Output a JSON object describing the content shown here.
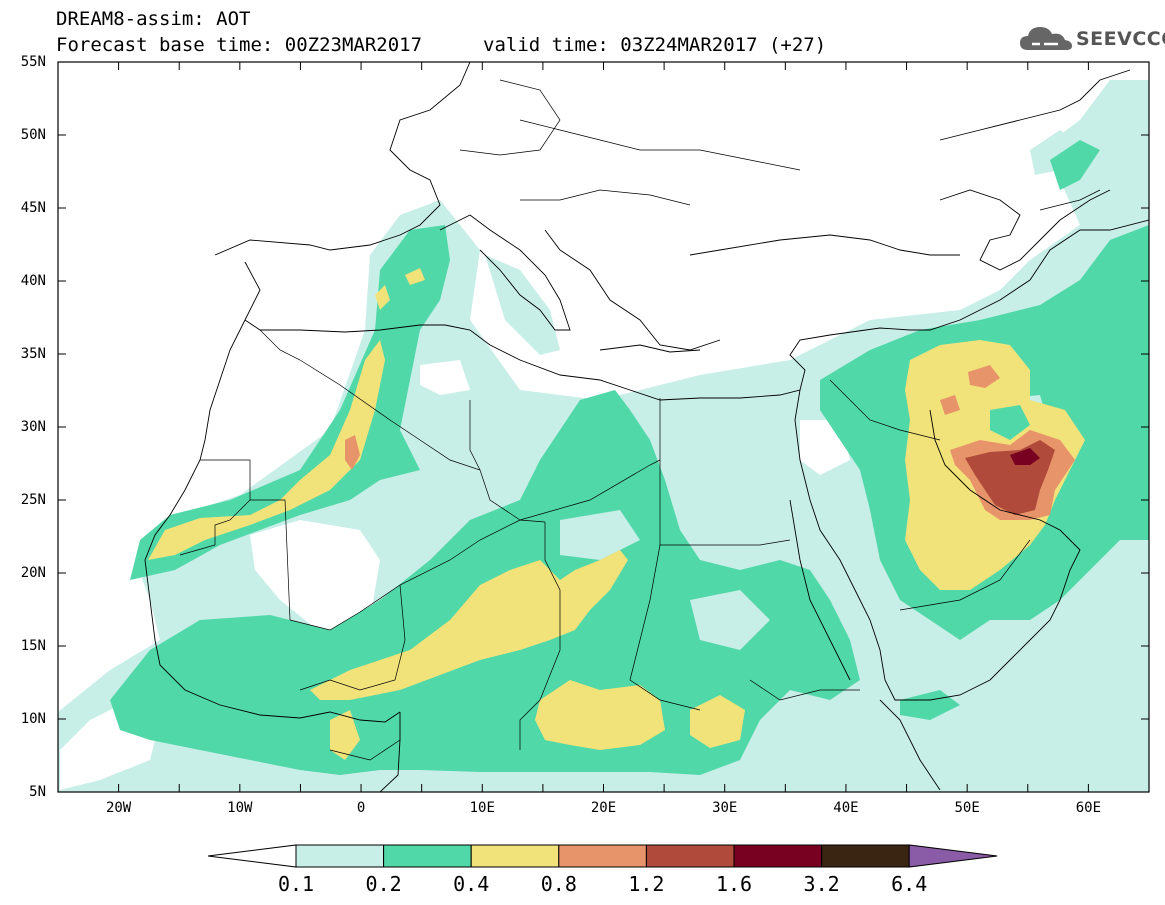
{
  "header": {
    "title": "DREAM8-assim: AOT",
    "base_time": "Forecast base time: 00Z23MAR2017",
    "valid_time": "valid time: 03Z24MAR2017 (+27)"
  },
  "logo": {
    "text": "SEEVCCC",
    "icon": "cloud-icon"
  },
  "map": {
    "variable": "AOT",
    "lat_range": [
      5,
      55
    ],
    "lon_range": [
      -25,
      65
    ],
    "lat_labels": [
      "55N",
      "50N",
      "45N",
      "40N",
      "35N",
      "30N",
      "25N",
      "20N",
      "15N",
      "10N",
      "5N"
    ],
    "lon_labels": [
      "20W",
      "10W",
      "0",
      "10E",
      "20E",
      "30E",
      "40E",
      "50E",
      "60E"
    ]
  },
  "colorbar": {
    "levels": [
      "0.1",
      "0.2",
      "0.4",
      "0.8",
      "1.2",
      "1.6",
      "3.2",
      "6.4"
    ],
    "colors": [
      "#ffffff",
      "#c8eee8",
      "#50d8a8",
      "#f2e27a",
      "#e8946a",
      "#b04a3a",
      "#780020",
      "#3a2412",
      "#8a5ca8"
    ]
  }
}
